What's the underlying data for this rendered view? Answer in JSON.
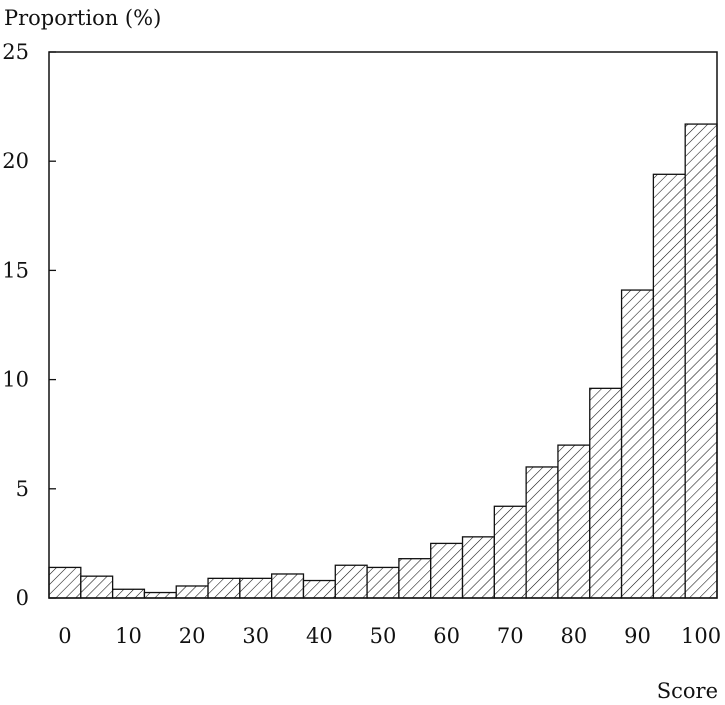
{
  "chart_data": {
    "type": "bar",
    "title": "",
    "xlabel": "Score",
    "ylabel": "Proportion (%)",
    "ylim": [
      0,
      25
    ],
    "xlim": [
      0,
      100
    ],
    "grid": false,
    "x_ticks": [
      "0",
      "10",
      "20",
      "30",
      "40",
      "50",
      "60",
      "70",
      "80",
      "90",
      "100"
    ],
    "y_ticks": [
      "0",
      "5",
      "10",
      "15",
      "20",
      "25"
    ],
    "categories": [
      "0",
      "5",
      "10",
      "15",
      "20",
      "25",
      "30",
      "35",
      "40",
      "45",
      "50",
      "55",
      "60",
      "65",
      "70",
      "75",
      "80",
      "85",
      "90",
      "95",
      "100"
    ],
    "values": [
      1.4,
      1.0,
      0.4,
      0.25,
      0.55,
      0.9,
      0.9,
      1.1,
      0.8,
      1.5,
      1.4,
      1.8,
      2.5,
      2.8,
      4.2,
      6.0,
      7.0,
      9.6,
      14.1,
      19.4,
      21.7
    ],
    "pattern": "diagonal hatch"
  }
}
